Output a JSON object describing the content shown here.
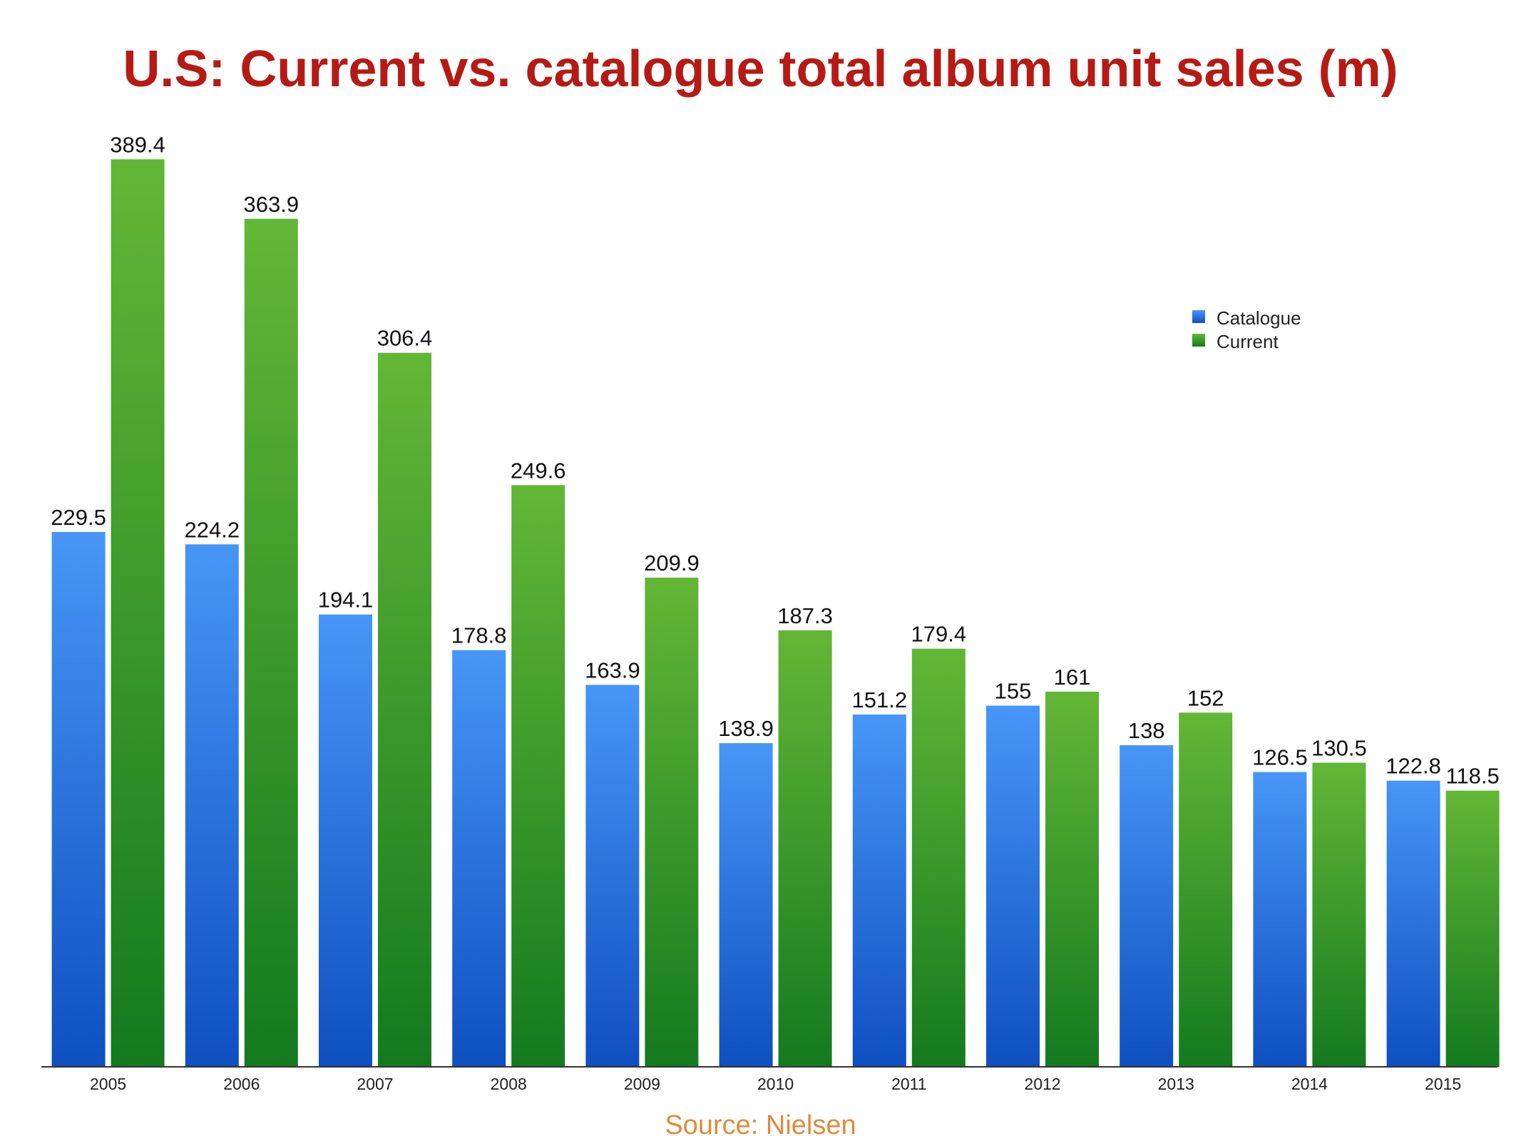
{
  "chart_data": {
    "type": "bar",
    "title": "U.S: Current vs. catalogue total album unit sales (m)",
    "xlabel": "",
    "ylabel": "",
    "categories": [
      "2005",
      "2006",
      "2007",
      "2008",
      "2009",
      "2010",
      "2011",
      "2012",
      "2013",
      "2014",
      "2015"
    ],
    "series": [
      {
        "name": "Catalogue",
        "color": "#2f7be8",
        "values": [
          229.5,
          224.2,
          194.1,
          178.8,
          163.9,
          138.9,
          151.2,
          155,
          138,
          126.5,
          122.8
        ],
        "labels": [
          "229.5",
          "224.2",
          "194.1",
          "178.8",
          "163.9",
          "138.9",
          "151.2",
          "155",
          "138",
          "126.5",
          "122.8"
        ]
      },
      {
        "name": "Current",
        "color": "#2f9a2a",
        "values": [
          389.4,
          363.9,
          306.4,
          249.6,
          209.9,
          187.3,
          179.4,
          161,
          152,
          130.5,
          118.5
        ],
        "labels": [
          "389.4",
          "363.9",
          "306.4",
          "249.6",
          "209.9",
          "187.3",
          "179.4",
          "161",
          "152",
          "130.5",
          "118.5"
        ]
      }
    ],
    "ylim": [
      0,
      400
    ],
    "grid": false,
    "legend_position": "top-right",
    "source": "Source: Nielsen"
  }
}
